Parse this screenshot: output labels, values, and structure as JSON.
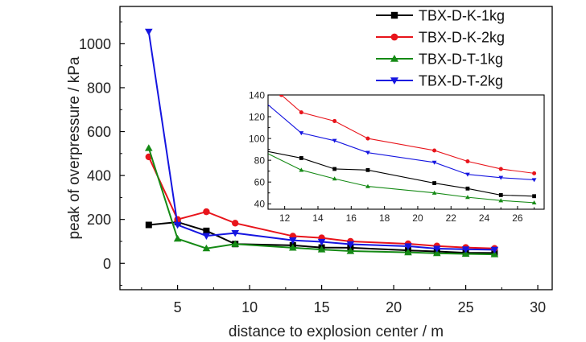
{
  "chart_data": {
    "type": "line",
    "title": "",
    "xlabel": "distance to explosion center / m",
    "ylabel": "peak of overpressure / kPa",
    "xlim": [
      1,
      31
    ],
    "ylim": [
      -120,
      1170
    ],
    "xticks": [
      5,
      10,
      15,
      20,
      25,
      30
    ],
    "yticks": [
      0,
      200,
      400,
      600,
      800,
      1000
    ],
    "grid": false,
    "legend_position": "top-right",
    "series": [
      {
        "name": "TBX-D-K-1kg",
        "color": "#000000",
        "marker": "square",
        "x": [
          3,
          5,
          7,
          9,
          13,
          15,
          17,
          21,
          23,
          25,
          27
        ],
        "y": [
          175,
          188,
          148,
          88,
          82,
          72,
          71,
          59,
          54,
          48,
          47
        ]
      },
      {
        "name": "TBX-D-K-2kg",
        "color": "#e8141b",
        "marker": "circle",
        "x": [
          3,
          5,
          7,
          9,
          13,
          15,
          17,
          21,
          23,
          25,
          27
        ],
        "y": [
          485,
          200,
          235,
          183,
          124,
          116,
          100,
          89,
          79,
          72,
          68
        ]
      },
      {
        "name": "TBX-D-T-1kg",
        "color": "#158a15",
        "marker": "triangle-up",
        "x": [
          3,
          5,
          7,
          9,
          13,
          15,
          17,
          21,
          23,
          25,
          27
        ],
        "y": [
          525,
          112,
          68,
          88,
          71,
          63,
          56,
          50,
          46,
          43,
          41
        ]
      },
      {
        "name": "TBX-D-T-2kg",
        "color": "#1515e0",
        "marker": "triangle-down",
        "x": [
          3,
          5,
          7,
          9,
          13,
          15,
          17,
          21,
          23,
          25,
          27
        ],
        "y": [
          1055,
          175,
          125,
          138,
          105,
          98,
          87,
          78,
          67,
          64,
          62
        ]
      }
    ],
    "inset": {
      "xlim": [
        11,
        27.6
      ],
      "ylim": [
        35,
        140
      ],
      "xticks": [
        12,
        14,
        16,
        18,
        20,
        22,
        24,
        26
      ],
      "yticks": [
        40,
        60,
        80,
        100,
        120,
        140
      ],
      "series": [
        {
          "name": "TBX-D-K-1kg",
          "color": "#000000",
          "marker": "square",
          "x": [
            11,
            13,
            15,
            17,
            21,
            23,
            25,
            27
          ],
          "y": [
            88,
            82,
            72,
            71,
            59,
            54,
            48,
            47
          ]
        },
        {
          "name": "TBX-D-K-2kg",
          "color": "#e8141b",
          "marker": "circle",
          "x": [
            11.8,
            13,
            15,
            17,
            21,
            23,
            25,
            27
          ],
          "y": [
            140,
            124,
            116,
            100,
            89,
            79,
            72,
            68
          ]
        },
        {
          "name": "TBX-D-T-1kg",
          "color": "#158a15",
          "marker": "triangle-up",
          "x": [
            11,
            13,
            15,
            17,
            21,
            23,
            25,
            27
          ],
          "y": [
            86,
            71,
            63,
            56,
            50,
            46,
            43,
            41
          ]
        },
        {
          "name": "TBX-D-T-2kg",
          "color": "#1515e0",
          "marker": "triangle-down",
          "x": [
            11,
            13,
            15,
            17,
            21,
            23,
            25,
            27
          ],
          "y": [
            131,
            105,
            98,
            87,
            78,
            67,
            64,
            62
          ]
        }
      ]
    }
  }
}
